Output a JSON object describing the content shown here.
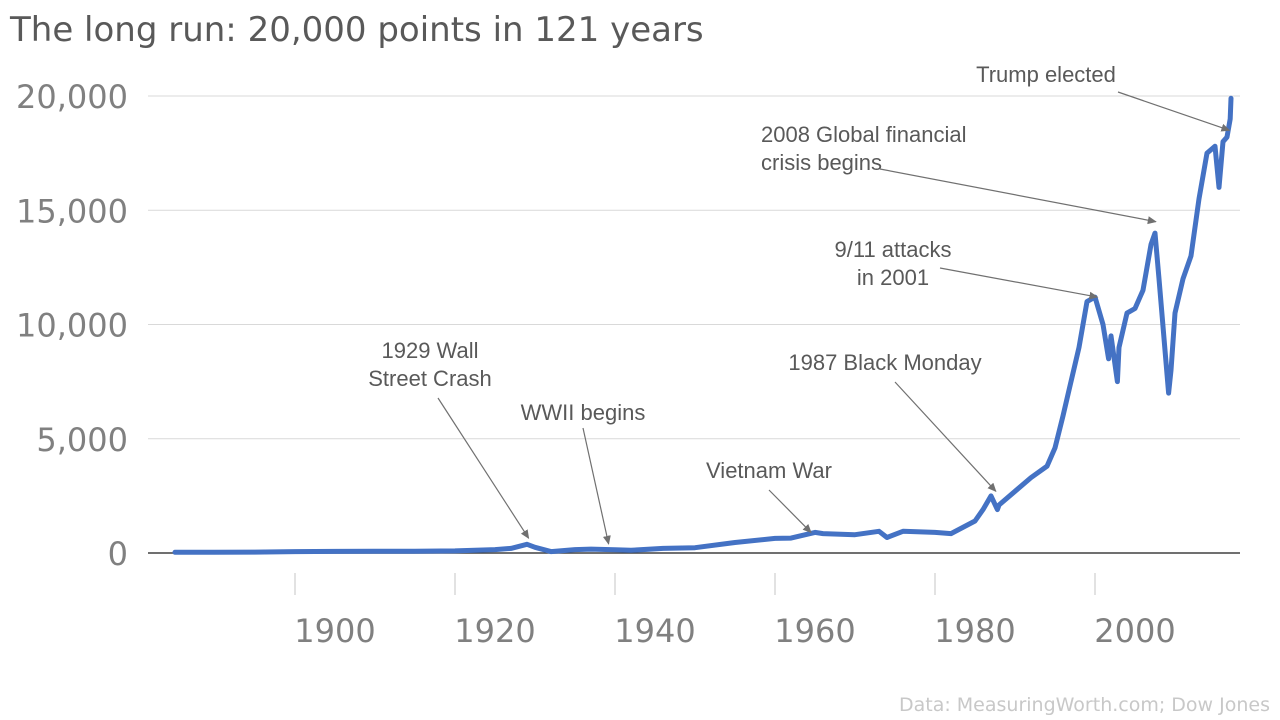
{
  "chart_data": {
    "type": "line",
    "title": "The long run: 20,000 points in 121 years",
    "source": "Data: MeasuringWorth.com; Dow Jones",
    "xlabel": "",
    "ylabel": "",
    "xlim": [
      1881,
      2017
    ],
    "ylim": [
      0,
      20000
    ],
    "y_ticks": [
      0,
      5000,
      10000,
      15000,
      20000
    ],
    "y_tick_labels": [
      "0",
      "5,000",
      "10,000",
      "15,000",
      "20,000"
    ],
    "x_ticks": [
      1900,
      1920,
      1940,
      1960,
      1980,
      2000
    ],
    "x_tick_labels": [
      "1900",
      "1920",
      "1940",
      "1960",
      "1980",
      "2000"
    ],
    "grid": "horizontal",
    "line_color": "#4472c4",
    "series": [
      {
        "x": [
          1885,
          1890,
          1895,
          1900,
          1905,
          1910,
          1915,
          1920,
          1925,
          1927,
          1929,
          1930,
          1932,
          1935,
          1937,
          1940,
          1942,
          1946,
          1950,
          1955,
          1960,
          1962,
          1965,
          1966,
          1970,
          1973,
          1974,
          1976,
          1980,
          1982,
          1985,
          1986,
          1987,
          1987.8,
          1988,
          1990,
          1992,
          1994,
          1995,
          1996,
          1997,
          1998,
          1999,
          2000,
          2001,
          2001.7,
          2002,
          2002.8,
          2003,
          2004,
          2005,
          2006,
          2007,
          2007.5,
          2008,
          2009.2,
          2009.5,
          2010,
          2011,
          2012,
          2013,
          2014,
          2015,
          2015.5,
          2016,
          2016.5,
          2016.9,
          2017
        ],
        "values": [
          30,
          30,
          40,
          60,
          70,
          80,
          80,
          90,
          150,
          200,
          380,
          250,
          60,
          150,
          170,
          140,
          120,
          200,
          230,
          460,
          640,
          650,
          900,
          850,
          800,
          950,
          680,
          950,
          900,
          850,
          1400,
          1900,
          2500,
          1900,
          2100,
          2700,
          3300,
          3800,
          4600,
          6000,
          7500,
          9000,
          11000,
          11200,
          10000,
          8500,
          9500,
          7500,
          9000,
          10500,
          10700,
          11500,
          13500,
          14000,
          12000,
          7000,
          8000,
          10500,
          12000,
          13000,
          15500,
          17500,
          17800,
          16000,
          18000,
          18200,
          19000,
          19900
        ]
      }
    ],
    "annotations": [
      {
        "lines": [
          "Trump elected"
        ],
        "target_x": 2016.8,
        "target_y": 18500,
        "anchor": "middle"
      },
      {
        "lines": [
          "2008 Global financial",
          "crisis begins"
        ],
        "target_x": 2007.6,
        "target_y": 14500,
        "anchor": "start"
      },
      {
        "lines": [
          "9/11 attacks",
          "in 2001"
        ],
        "target_x": 2000.3,
        "target_y": 11200,
        "anchor": "middle"
      },
      {
        "lines": [
          "1987 Black Monday"
        ],
        "target_x": 1987.6,
        "target_y": 2700,
        "anchor": "middle"
      },
      {
        "lines": [
          "1929 Wall",
          "Street Crash"
        ],
        "target_x": 1929.2,
        "target_y": 650,
        "anchor": "middle"
      },
      {
        "lines": [
          "WWII begins"
        ],
        "target_x": 1939.2,
        "target_y": 400,
        "anchor": "middle"
      },
      {
        "lines": [
          "Vietnam War"
        ],
        "target_x": 1964.5,
        "target_y": 900,
        "anchor": "middle"
      }
    ]
  }
}
